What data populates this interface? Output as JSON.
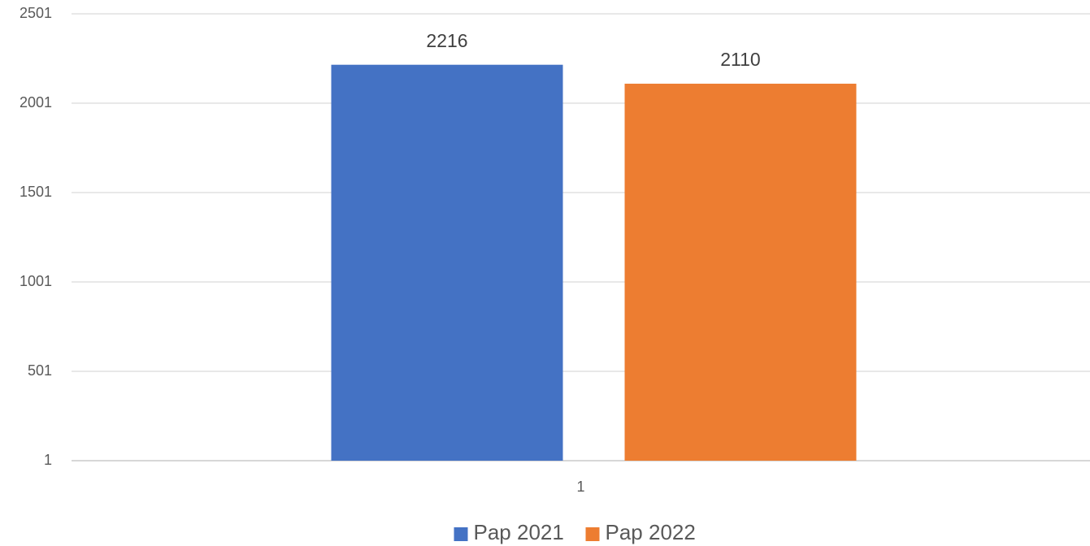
{
  "chart_data": {
    "type": "bar",
    "categories": [
      "1"
    ],
    "series": [
      {
        "name": "Pap 2021",
        "color": "#4472c4",
        "values": [
          2216
        ]
      },
      {
        "name": "Pap 2022",
        "color": "#ed7d31",
        "values": [
          2110
        ]
      }
    ],
    "ylim": [
      1,
      2501
    ],
    "yticks": [
      1,
      501,
      1001,
      1501,
      2001,
      2501
    ],
    "grid": true,
    "legend": "bottom"
  }
}
